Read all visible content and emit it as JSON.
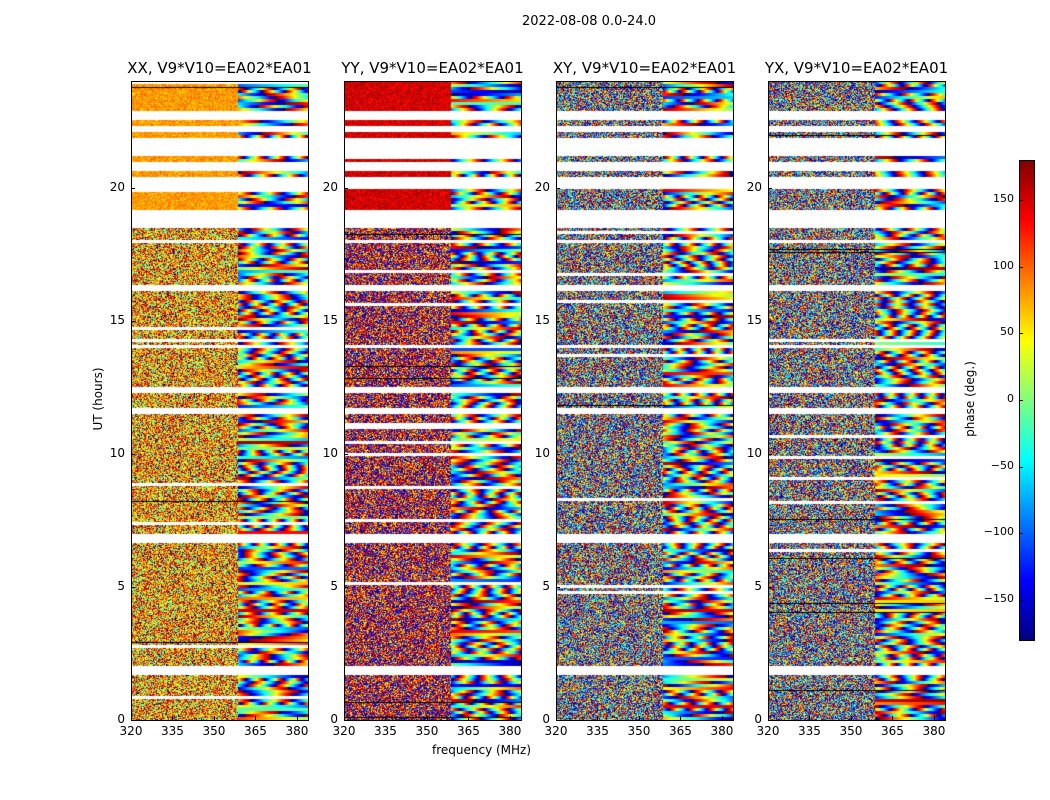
{
  "chart_data": {
    "type": "heatmap",
    "title": "2022-08-08 0.0-24.0",
    "xlabel": "frequency (MHz)",
    "ylabel": "UT (hours)",
    "xlim": [
      320,
      384
    ],
    "ylim": [
      0,
      24
    ],
    "xticks": [
      "320",
      "335",
      "350",
      "365",
      "380"
    ],
    "xtick_values": [
      320,
      335,
      350,
      365,
      380
    ],
    "yticks": [
      "0",
      "5",
      "10",
      "15",
      "20"
    ],
    "ytick_values": [
      0,
      5,
      10,
      15,
      20
    ],
    "panels": [
      {
        "title": "XX, V9*V10=EA02*EA01",
        "mean_phase": 80,
        "spread": 0.35
      },
      {
        "title": "YY, V9*V10=EA02*EA01",
        "mean_phase": 150,
        "spread": 0.35
      },
      {
        "title": "XY, V9*V10=EA02*EA01",
        "mean_phase": 0,
        "spread": 1.0
      },
      {
        "title": "YX, V9*V10=EA02*EA01",
        "mean_phase": 0,
        "spread": 1.0
      }
    ],
    "flagged_hours": [
      [
        1.8,
        2.1
      ],
      [
        4.4,
        4.5
      ],
      [
        6.7,
        7.0
      ],
      [
        11.6,
        11.8
      ],
      [
        12.3,
        12.6
      ],
      [
        14.0,
        14.1
      ],
      [
        16.2,
        16.4
      ],
      [
        18.0,
        18.1
      ],
      [
        18.5,
        19.2
      ],
      [
        20.0,
        20.5
      ],
      [
        20.7,
        21.0
      ],
      [
        21.2,
        21.9
      ],
      [
        22.1,
        22.4
      ],
      [
        22.6,
        22.9
      ]
    ],
    "colorbar": {
      "label": "phase (deg.)",
      "range": [
        -180,
        180
      ],
      "ticks": [
        "150",
        "100",
        "50",
        "0",
        "−50",
        "−100",
        "−150"
      ],
      "tick_values": [
        150,
        100,
        50,
        0,
        -50,
        -100,
        -150
      ],
      "colormap": "jet"
    }
  }
}
